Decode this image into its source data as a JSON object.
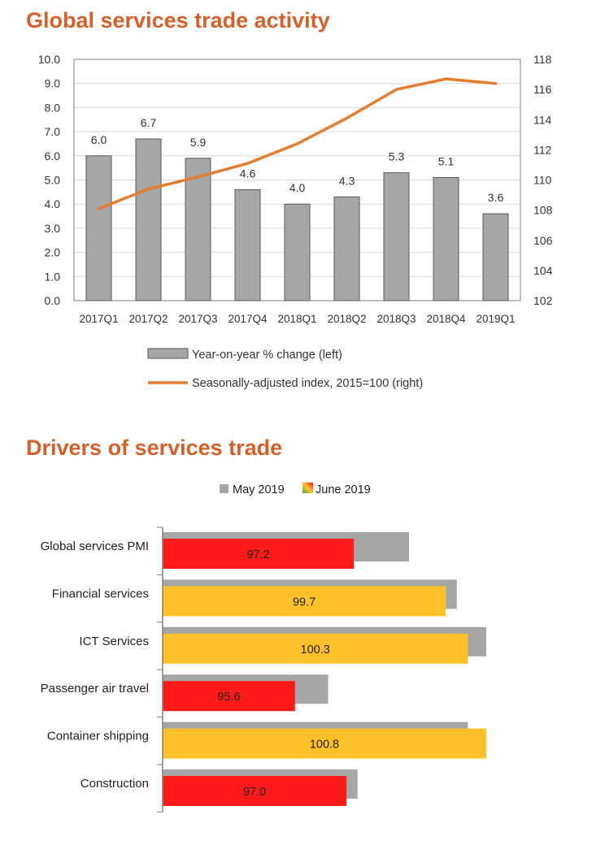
{
  "colors": {
    "title": "#d5602a",
    "bar_gray": "#a6a6a6",
    "bar_edge": "#5a5a5a",
    "line_orange": "#e57d2f",
    "red": "#ff1a1a",
    "amber": "#ffc12a",
    "axis": "#808080",
    "grid": "#d9d9d9"
  },
  "headings": {
    "chart1_title": "Global services trade activity",
    "chart2_title": "Drivers of services trade"
  },
  "chart_data": [
    {
      "type": "bar",
      "title": "Global services trade activity",
      "categories": [
        "2017Q1",
        "2017Q2",
        "2017Q3",
        "2017Q4",
        "2018Q1",
        "2018Q2",
        "2018Q3",
        "2018Q4",
        "2019Q1"
      ],
      "bar_labels": [
        "6.0",
        "6.7",
        "5.9",
        "4.6",
        "4.0",
        "4.3",
        "5.3",
        "5.1",
        "3.6"
      ],
      "series": [
        {
          "name": "Year-on-year % change (left)",
          "type": "bar",
          "axis": "left",
          "values": [
            6.0,
            6.7,
            5.9,
            4.6,
            4.0,
            4.3,
            5.3,
            5.1,
            3.6
          ]
        },
        {
          "name": "Seasonally-adjusted index, 2015=100 (right)",
          "type": "line",
          "axis": "right",
          "values": [
            108.1,
            109.4,
            110.2,
            111.1,
            112.4,
            114.1,
            116.0,
            116.7,
            116.4
          ]
        }
      ],
      "ylim_left": [
        0,
        10
      ],
      "ylim_right": [
        102,
        118
      ],
      "left_ticks": [
        "0.0",
        "1.0",
        "2.0",
        "3.0",
        "4.0",
        "5.0",
        "6.0",
        "7.0",
        "8.0",
        "9.0",
        "10.0"
      ],
      "right_ticks": [
        "102",
        "104",
        "106",
        "108",
        "110",
        "112",
        "114",
        "116",
        "118"
      ],
      "grid": true,
      "legend_position": "bottom"
    },
    {
      "type": "bar",
      "orientation": "horizontal",
      "title": "Drivers of services trade",
      "categories": [
        "Global services PMI",
        "Financial services",
        "ICT Services",
        "Passenger air travel",
        "Container shipping",
        "Construction"
      ],
      "series": [
        {
          "name": "May 2019",
          "values": [
            98.7,
            100.0,
            100.8,
            96.5,
            100.3,
            97.3
          ]
        },
        {
          "name": "June 2019",
          "values": [
            97.2,
            99.7,
            100.3,
            95.6,
            100.8,
            97.0
          ],
          "labels": [
            "97.2",
            "99.7",
            "100.3",
            "95.6",
            "100.8",
            "97.0"
          ],
          "status": [
            "below-100",
            "near-100",
            "above-100",
            "below-100",
            "above-100",
            "below-100"
          ]
        }
      ],
      "xlim": [
        92,
        101.0
      ],
      "legend_position": "top"
    }
  ]
}
